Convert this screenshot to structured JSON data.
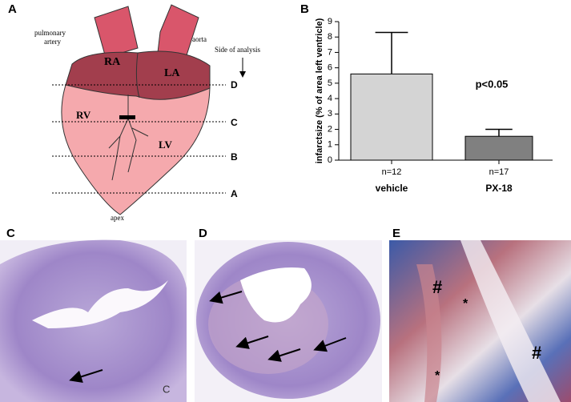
{
  "chart_data": {
    "type": "bar",
    "panel_label": "B",
    "ylabel": "infarctsize (% of area left ventricle)",
    "categories": [
      "vehicle",
      "PX-18"
    ],
    "n_labels": [
      "n=12",
      "n=17"
    ],
    "values": [
      5.6,
      1.55
    ],
    "errors": [
      2.7,
      0.45
    ],
    "colors": [
      "#d4d4d4",
      "#808080"
    ],
    "ylim": [
      0,
      9
    ],
    "yticks": [
      0,
      1,
      2,
      3,
      4,
      5,
      6,
      7,
      8,
      9
    ],
    "annotation": "p<0.05"
  },
  "heart_diagram": {
    "panel_label": "A",
    "pulmonary_artery": [
      "pulmonary",
      "artery"
    ],
    "aorta": "aorta",
    "side_of_analysis": "Side of analysis",
    "chambers": [
      "RA",
      "LA",
      "RV",
      "LV"
    ],
    "apex": "apex",
    "levels": [
      "D",
      "C",
      "B",
      "A"
    ]
  },
  "histology": {
    "panel_labels": [
      "C",
      "D",
      "E"
    ],
    "stamp": "C",
    "marks": [
      "#",
      "*",
      "*",
      "#"
    ]
  }
}
